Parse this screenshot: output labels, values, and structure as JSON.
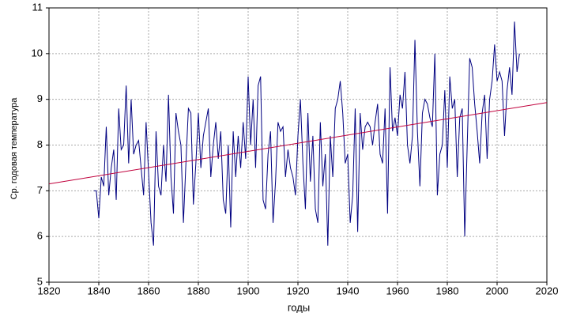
{
  "chart_data": {
    "type": "line",
    "xlabel": "годы",
    "ylabel": "Ср. годовая температура",
    "xlim": [
      1820,
      2020
    ],
    "xticks": [
      1820,
      1840,
      1860,
      1880,
      1900,
      1920,
      1940,
      1960,
      1980,
      2000,
      2020
    ],
    "ylim": [
      5,
      11
    ],
    "yticks": [
      5,
      6,
      7,
      8,
      9,
      10,
      11
    ],
    "grid": true,
    "series": [
      {
        "color": "#000080",
        "x": [
          1838,
          1839,
          1840,
          1841,
          1842,
          1843,
          1844,
          1845,
          1846,
          1847,
          1848,
          1849,
          1850,
          1851,
          1852,
          1853,
          1854,
          1855,
          1856,
          1857,
          1858,
          1859,
          1860,
          1861,
          1862,
          1863,
          1864,
          1865,
          1866,
          1867,
          1868,
          1869,
          1870,
          1871,
          1872,
          1873,
          1874,
          1875,
          1876,
          1877,
          1878,
          1879,
          1880,
          1881,
          1882,
          1883,
          1884,
          1885,
          1886,
          1887,
          1888,
          1889,
          1890,
          1891,
          1892,
          1893,
          1894,
          1895,
          1896,
          1897,
          1898,
          1899,
          1900,
          1901,
          1902,
          1903,
          1904,
          1905,
          1906,
          1907,
          1908,
          1909,
          1910,
          1911,
          1912,
          1913,
          1914,
          1915,
          1916,
          1917,
          1918,
          1919,
          1920,
          1921,
          1922,
          1923,
          1924,
          1925,
          1926,
          1927,
          1928,
          1929,
          1930,
          1931,
          1932,
          1933,
          1934,
          1935,
          1936,
          1937,
          1938,
          1939,
          1940,
          1941,
          1942,
          1943,
          1944,
          1945,
          1946,
          1947,
          1948,
          1949,
          1950,
          1951,
          1952,
          1953,
          1954,
          1955,
          1956,
          1957,
          1958,
          1959,
          1960,
          1961,
          1962,
          1963,
          1964,
          1965,
          1966,
          1967,
          1968,
          1969,
          1970,
          1971,
          1972,
          1973,
          1974,
          1975,
          1976,
          1977,
          1978,
          1979,
          1980,
          1981,
          1982,
          1983,
          1984,
          1985,
          1986,
          1987,
          1988,
          1989,
          1990,
          1991,
          1992,
          1993,
          1994,
          1995,
          1996,
          1997,
          1998,
          1999,
          2000,
          2001,
          2002,
          2003,
          2004,
          2005,
          2006,
          2007,
          2008,
          2009
        ],
        "values": [
          7.0,
          7.0,
          6.4,
          7.3,
          7.1,
          8.4,
          6.9,
          7.5,
          7.9,
          6.8,
          8.8,
          7.9,
          8.0,
          9.3,
          7.6,
          9.0,
          7.8,
          8.0,
          8.1,
          7.5,
          6.9,
          8.5,
          7.4,
          6.3,
          5.8,
          8.3,
          7.1,
          6.9,
          8.0,
          7.2,
          9.1,
          7.3,
          6.5,
          8.7,
          8.3,
          8.0,
          6.3,
          7.6,
          8.8,
          8.7,
          6.7,
          7.6,
          8.7,
          7.5,
          8.2,
          8.5,
          8.8,
          7.3,
          8.0,
          8.5,
          7.7,
          8.3,
          6.8,
          6.5,
          8.0,
          6.2,
          8.3,
          7.3,
          8.2,
          7.5,
          8.5,
          7.7,
          9.5,
          8.0,
          9.0,
          7.5,
          9.3,
          9.5,
          6.8,
          6.6,
          7.8,
          8.3,
          6.3,
          7.2,
          8.5,
          8.3,
          8.4,
          7.3,
          7.9,
          7.5,
          7.3,
          6.9,
          8.2,
          9.0,
          7.6,
          6.6,
          8.7,
          7.2,
          8.2,
          6.6,
          6.3,
          8.5,
          7.1,
          7.8,
          5.8,
          8.2,
          7.3,
          8.8,
          9.0,
          9.4,
          8.7,
          7.6,
          7.8,
          6.3,
          6.9,
          8.8,
          6.1,
          8.7,
          7.9,
          8.4,
          8.5,
          8.4,
          8.0,
          8.5,
          8.9,
          7.8,
          7.6,
          8.8,
          6.5,
          9.7,
          8.3,
          8.6,
          8.2,
          9.1,
          8.8,
          9.6,
          8.0,
          7.6,
          8.2,
          10.3,
          8.3,
          7.1,
          8.7,
          9.0,
          8.9,
          8.6,
          8.4,
          10.0,
          6.9,
          7.8,
          8.0,
          9.2,
          7.5,
          9.5,
          8.8,
          9.0,
          7.3,
          8.6,
          8.8,
          6.0,
          8.0,
          9.9,
          9.7,
          8.9,
          8.3,
          7.6,
          8.7,
          9.1,
          7.7,
          9.0,
          9.4,
          10.2,
          9.4,
          9.6,
          9.4,
          8.2,
          9.2,
          9.7,
          9.1,
          10.7,
          9.6,
          10.0
        ]
      },
      {
        "color": "#c0003c",
        "x": [
          1820,
          2020
        ],
        "values": [
          7.15,
          8.93
        ]
      }
    ]
  }
}
